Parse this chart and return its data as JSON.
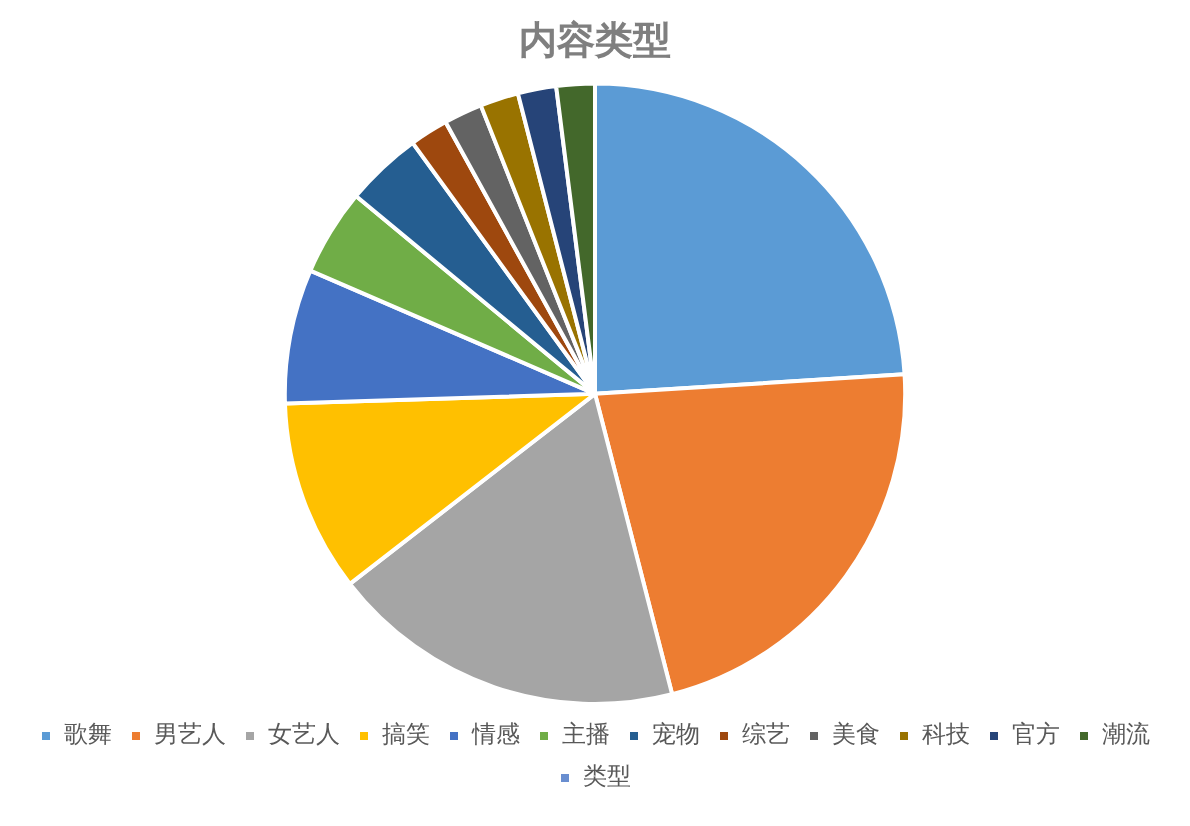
{
  "chart_data": {
    "type": "pie",
    "title": "内容类型",
    "categories": [
      "歌舞",
      "男艺人",
      "女艺人",
      "搞笑",
      "情感",
      "主播",
      "宠物",
      "综艺",
      "美食",
      "科技",
      "官方",
      "潮流",
      "类型"
    ],
    "values": [
      24,
      22,
      18.5,
      10,
      7,
      4.5,
      4,
      2,
      2,
      2,
      2,
      2,
      0
    ],
    "colors": [
      "#5b9bd5",
      "#ed7d31",
      "#a5a5a5",
      "#ffc000",
      "#4472c4",
      "#70ad47",
      "#255e91",
      "#9e480e",
      "#636363",
      "#997300",
      "#264478",
      "#43682b",
      "#698ed0"
    ],
    "legend": "bottom"
  }
}
